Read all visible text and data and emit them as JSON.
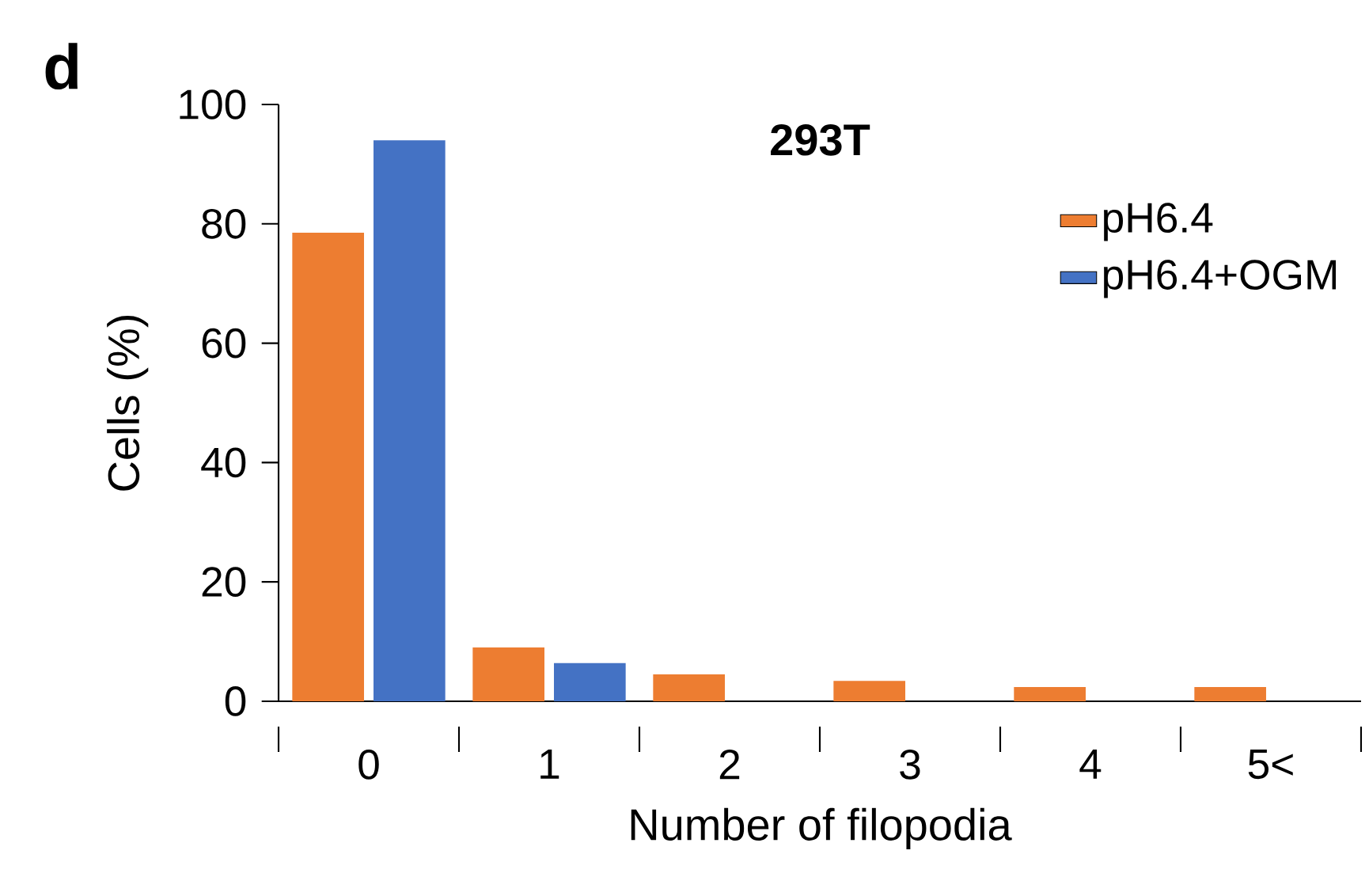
{
  "chart_data": {
    "type": "bar",
    "title": "293T",
    "xlabel": "Number of filopodia",
    "ylabel": "Cells (%)",
    "annotations": [
      "d"
    ],
    "categories": [
      "0",
      "1",
      "2",
      "3",
      "4",
      "5<"
    ],
    "series": [
      {
        "name": "pH6.4",
        "color": "#ed7d31",
        "values": [
          78.5,
          9,
          4.5,
          3.4,
          2.4,
          2.4
        ]
      },
      {
        "name": "pH6.4+OGM",
        "color": "#4472c4",
        "values": [
          94,
          6.4,
          0,
          0,
          0,
          0
        ]
      }
    ],
    "ylim": [
      0,
      100
    ],
    "yticks": [
      0,
      20,
      40,
      60,
      80,
      100
    ],
    "grid": false,
    "legend": "top right"
  }
}
